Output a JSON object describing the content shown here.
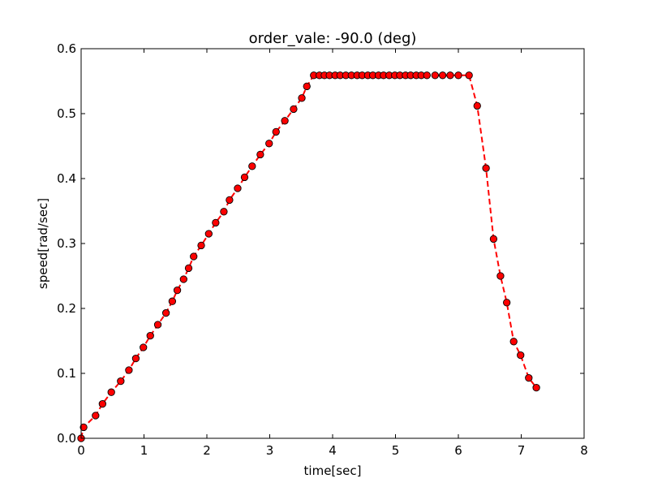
{
  "chart_data": {
    "type": "line",
    "title": "order_vale: -90.0 (deg)",
    "xlabel": "time[sec]",
    "ylabel": "speed[rad/sec]",
    "xlim": [
      0,
      8
    ],
    "ylim": [
      0.0,
      0.6
    ],
    "xticks": [
      0,
      1,
      2,
      3,
      4,
      5,
      6,
      7,
      8
    ],
    "xtick_labels": [
      "0",
      "1",
      "2",
      "3",
      "4",
      "5",
      "6",
      "7",
      "8"
    ],
    "yticks": [
      0.0,
      0.1,
      0.2,
      0.3,
      0.4,
      0.5,
      0.6
    ],
    "ytick_labels": [
      "0.0",
      "0.1",
      "0.2",
      "0.3",
      "0.4",
      "0.5",
      "0.6"
    ],
    "grid": false,
    "series": [
      {
        "name": "speed",
        "line_style": "dashed",
        "line_color": "#ff0000",
        "marker": "circle",
        "marker_face": "#ff0000",
        "marker_edge": "#000000",
        "x": [
          0.0,
          0.04,
          0.23,
          0.34,
          0.48,
          0.63,
          0.76,
          0.87,
          0.99,
          1.1,
          1.22,
          1.35,
          1.45,
          1.53,
          1.63,
          1.71,
          1.79,
          1.91,
          2.03,
          2.14,
          2.27,
          2.36,
          2.49,
          2.6,
          2.72,
          2.85,
          2.99,
          3.1,
          3.24,
          3.38,
          3.51,
          3.59,
          3.7,
          3.79,
          3.87,
          3.95,
          4.04,
          4.12,
          4.21,
          4.3,
          4.39,
          4.47,
          4.56,
          4.64,
          4.73,
          4.81,
          4.9,
          4.99,
          5.07,
          5.16,
          5.24,
          5.33,
          5.41,
          5.5,
          5.63,
          5.75,
          5.87,
          6.0,
          6.17,
          6.3,
          6.44,
          6.56,
          6.67,
          6.77,
          6.88,
          6.99,
          7.12,
          7.24
        ],
        "y": [
          0.0,
          0.017,
          0.035,
          0.053,
          0.071,
          0.088,
          0.105,
          0.123,
          0.14,
          0.158,
          0.175,
          0.193,
          0.211,
          0.228,
          0.245,
          0.262,
          0.28,
          0.297,
          0.315,
          0.332,
          0.349,
          0.367,
          0.385,
          0.402,
          0.419,
          0.437,
          0.454,
          0.472,
          0.489,
          0.507,
          0.524,
          0.542,
          0.559,
          0.559,
          0.559,
          0.559,
          0.559,
          0.559,
          0.559,
          0.559,
          0.559,
          0.559,
          0.559,
          0.559,
          0.559,
          0.559,
          0.559,
          0.559,
          0.559,
          0.559,
          0.559,
          0.559,
          0.559,
          0.559,
          0.559,
          0.559,
          0.559,
          0.559,
          0.559,
          0.512,
          0.416,
          0.307,
          0.25,
          0.209,
          0.149,
          0.128,
          0.093,
          0.078
        ]
      }
    ]
  }
}
